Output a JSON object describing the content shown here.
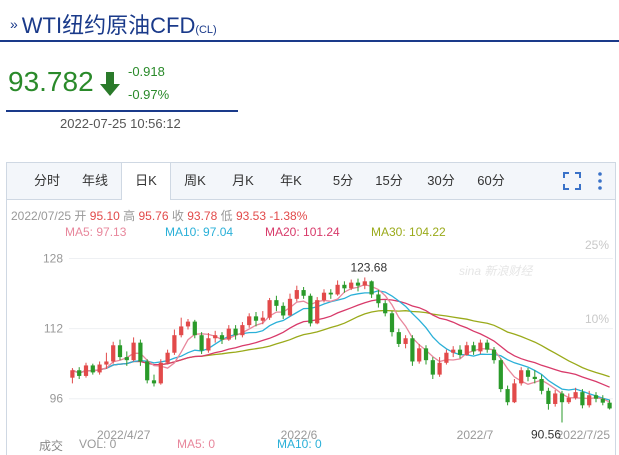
{
  "header": {
    "title": "WTI纽约原油CFD",
    "code": "(CL)",
    "price": "93.782",
    "change": "-0.918",
    "change_pct": "-0.97%",
    "timestamp": "2022-07-25 10:56:12"
  },
  "tabs": [
    "分时",
    "年线",
    "日K",
    "周K",
    "月K",
    "年K",
    "5分",
    "15分",
    "30分",
    "60分"
  ],
  "active_tab": "日K",
  "info": {
    "date": "2022/07/25",
    "open_label": "开",
    "open": "95.10",
    "high_label": "高",
    "high": "95.76",
    "close_label": "收",
    "close": "93.78",
    "low_label": "低",
    "low": "93.53",
    "pct": "-1.38%"
  },
  "ma": {
    "ma5": "MA5: 97.13",
    "ma10": "MA10: 97.04",
    "ma20": "MA20: 101.24",
    "ma30": "MA30: 104.22"
  },
  "volume": {
    "label": "成交",
    "vol": "VOL: 0",
    "ma5": "MA5: 0",
    "ma10": "MA10: 0"
  },
  "watermark": "sina 新浪财经",
  "colors": {
    "up": "#e24a4a",
    "down": "#2a9a2a",
    "ma5": "#e8879c",
    "ma10": "#2ab0d8",
    "ma20": "#d83a6a",
    "ma30": "#9aaa1a",
    "brand": "#1a3a8a"
  },
  "chart_data": {
    "type": "candlestick",
    "y_ticks": [
      "128",
      "112",
      "96"
    ],
    "y_tick_values": [
      128,
      112,
      96
    ],
    "pct_ticks": [
      "25%",
      "10%"
    ],
    "x_labels": [
      "2022/4/27",
      "2022/6",
      "2022/7",
      "2022/7/25"
    ],
    "annotations": {
      "high": "123.68",
      "low": "90.56"
    },
    "ylim": [
      90,
      132
    ],
    "candles": [
      [
        100.8,
        102.5,
        99.5,
        103.0
      ],
      [
        102.5,
        101.2,
        100.5,
        103.2
      ],
      [
        101.2,
        103.6,
        100.8,
        104.2
      ],
      [
        103.6,
        102.0,
        101.5,
        104.0
      ],
      [
        102.0,
        103.8,
        101.5,
        104.5
      ],
      [
        103.8,
        104.5,
        102.8,
        106.5
      ],
      [
        104.5,
        108.2,
        104.0,
        109.0
      ],
      [
        108.2,
        105.5,
        104.8,
        109.5
      ],
      [
        105.5,
        104.8,
        103.5,
        106.8
      ],
      [
        104.8,
        108.8,
        104.5,
        110.0
      ],
      [
        108.8,
        104.5,
        103.5,
        109.5
      ],
      [
        104.5,
        100.2,
        99.5,
        105.0
      ],
      [
        100.2,
        99.5,
        98.8,
        101.5
      ],
      [
        99.5,
        104.2,
        99.2,
        105.0
      ],
      [
        104.2,
        106.5,
        103.8,
        107.2
      ],
      [
        106.5,
        110.5,
        106.0,
        111.8
      ],
      [
        110.5,
        112.5,
        110.0,
        114.5
      ],
      [
        112.5,
        113.6,
        111.8,
        114.2
      ],
      [
        113.6,
        110.5,
        109.8,
        114.0
      ],
      [
        110.5,
        107.0,
        106.2,
        111.2
      ],
      [
        107.0,
        109.8,
        106.5,
        111.0
      ],
      [
        109.8,
        110.5,
        108.8,
        111.5
      ],
      [
        110.5,
        109.5,
        108.5,
        111.2
      ],
      [
        109.5,
        112.0,
        109.2,
        112.8
      ],
      [
        112.0,
        110.5,
        109.5,
        112.8
      ],
      [
        110.5,
        112.8,
        110.0,
        113.5
      ],
      [
        112.8,
        114.8,
        112.2,
        115.5
      ],
      [
        114.8,
        113.8,
        112.5,
        115.8
      ],
      [
        113.8,
        114.5,
        113.0,
        116.0
      ],
      [
        114.5,
        118.5,
        114.0,
        119.0
      ],
      [
        118.5,
        117.2,
        116.0,
        119.5
      ],
      [
        117.2,
        115.0,
        114.2,
        118.0
      ],
      [
        115.0,
        118.8,
        114.8,
        120.0
      ],
      [
        118.8,
        120.8,
        118.2,
        121.8
      ],
      [
        120.8,
        119.5,
        118.8,
        121.5
      ],
      [
        119.5,
        113.2,
        112.5,
        120.0
      ],
      [
        113.2,
        118.5,
        113.0,
        119.2
      ],
      [
        118.5,
        120.2,
        118.0,
        121.0
      ],
      [
        120.2,
        119.8,
        118.8,
        121.0
      ],
      [
        119.8,
        122.0,
        119.5,
        123.0
      ],
      [
        122.0,
        121.2,
        120.2,
        122.8
      ],
      [
        121.2,
        122.5,
        120.8,
        123.2
      ],
      [
        122.5,
        121.8,
        120.5,
        123.4
      ],
      [
        121.8,
        122.8,
        121.0,
        123.68
      ],
      [
        122.8,
        119.8,
        119.0,
        123.0
      ],
      [
        119.8,
        117.8,
        116.8,
        120.8
      ],
      [
        117.8,
        115.5,
        114.8,
        118.5
      ],
      [
        115.5,
        111.2,
        110.2,
        116.0
      ],
      [
        111.2,
        108.5,
        107.8,
        112.0
      ],
      [
        108.5,
        109.8,
        107.5,
        110.5
      ],
      [
        109.8,
        104.5,
        103.5,
        110.5
      ],
      [
        104.5,
        107.5,
        104.0,
        108.5
      ],
      [
        107.5,
        104.8,
        103.8,
        108.2
      ],
      [
        104.8,
        101.5,
        100.5,
        105.5
      ],
      [
        101.5,
        104.2,
        101.0,
        105.5
      ],
      [
        104.2,
        106.5,
        103.8,
        107.2
      ],
      [
        106.5,
        107.2,
        105.5,
        108.0
      ],
      [
        107.2,
        106.0,
        105.2,
        108.2
      ],
      [
        106.0,
        108.2,
        105.8,
        109.0
      ],
      [
        108.2,
        106.8,
        106.0,
        109.0
      ],
      [
        106.8,
        108.8,
        106.2,
        109.5
      ],
      [
        108.8,
        107.2,
        106.5,
        109.5
      ],
      [
        107.2,
        104.8,
        104.0,
        107.8
      ],
      [
        104.8,
        98.2,
        97.5,
        105.2
      ],
      [
        98.2,
        95.2,
        94.5,
        99.0
      ],
      [
        95.2,
        99.5,
        95.0,
        100.5
      ],
      [
        99.5,
        102.5,
        99.0,
        103.2
      ],
      [
        102.5,
        101.0,
        100.0,
        103.0
      ],
      [
        101.0,
        100.5,
        99.5,
        102.5
      ],
      [
        100.5,
        97.8,
        97.0,
        101.5
      ],
      [
        97.8,
        94.8,
        93.5,
        98.5
      ],
      [
        94.8,
        97.2,
        94.2,
        98.0
      ],
      [
        97.2,
        95.2,
        90.56,
        97.8
      ],
      [
        95.2,
        96.2,
        94.8,
        97.2
      ],
      [
        96.2,
        97.5,
        95.8,
        98.5
      ],
      [
        97.5,
        94.5,
        93.8,
        98.2
      ],
      [
        94.5,
        96.8,
        94.0,
        97.8
      ],
      [
        96.8,
        96.0,
        95.2,
        97.5
      ],
      [
        96.0,
        95.1,
        94.5,
        96.8
      ],
      [
        95.1,
        93.78,
        93.53,
        95.76
      ]
    ]
  }
}
